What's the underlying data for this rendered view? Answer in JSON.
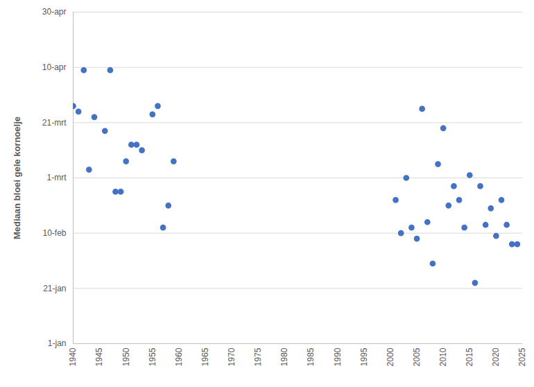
{
  "chart_data": {
    "type": "scatter",
    "y_label": "Mediaan bloei gele kornoelje",
    "color": "#4472c4",
    "marker": "circle",
    "grid": true,
    "x": [
      1940,
      1941,
      1942,
      1943,
      1944,
      1946,
      1947,
      1948,
      1949,
      1950,
      1951,
      1952,
      1953,
      1955,
      1956,
      1957,
      1958,
      1959,
      2001,
      2002,
      2003,
      2004,
      2005,
      2006,
      2007,
      2008,
      2009,
      2010,
      2011,
      2012,
      2013,
      2014,
      2015,
      2016,
      2017,
      2018,
      2019,
      2020,
      2021,
      2022,
      2023,
      2024
    ],
    "values": [
      87,
      85,
      100,
      64,
      83,
      78,
      100,
      56,
      56,
      67,
      73,
      73,
      71,
      84,
      87,
      43,
      51,
      67,
      53,
      41,
      61,
      43,
      39,
      86,
      45,
      30,
      66,
      79,
      51,
      58,
      53,
      43,
      62,
      23,
      58,
      44,
      50,
      40,
      53,
      44,
      37,
      37
    ],
    "xlim": [
      1940,
      2025
    ],
    "xticks": [
      1940,
      1945,
      1950,
      1955,
      1960,
      1965,
      1970,
      1975,
      1980,
      1985,
      1990,
      1995,
      2000,
      2005,
      2010,
      2015,
      2020,
      2025
    ],
    "ylim": [
      1,
      121
    ],
    "yticks": [
      {
        "value": 1,
        "label": "1-jan"
      },
      {
        "value": 21,
        "label": "21-jan"
      },
      {
        "value": 41,
        "label": "10-feb"
      },
      {
        "value": 61,
        "label": "1-mrt"
      },
      {
        "value": 81,
        "label": "21-mrt"
      },
      {
        "value": 101,
        "label": "10-apr"
      },
      {
        "value": 121,
        "label": "30-apr"
      }
    ]
  }
}
